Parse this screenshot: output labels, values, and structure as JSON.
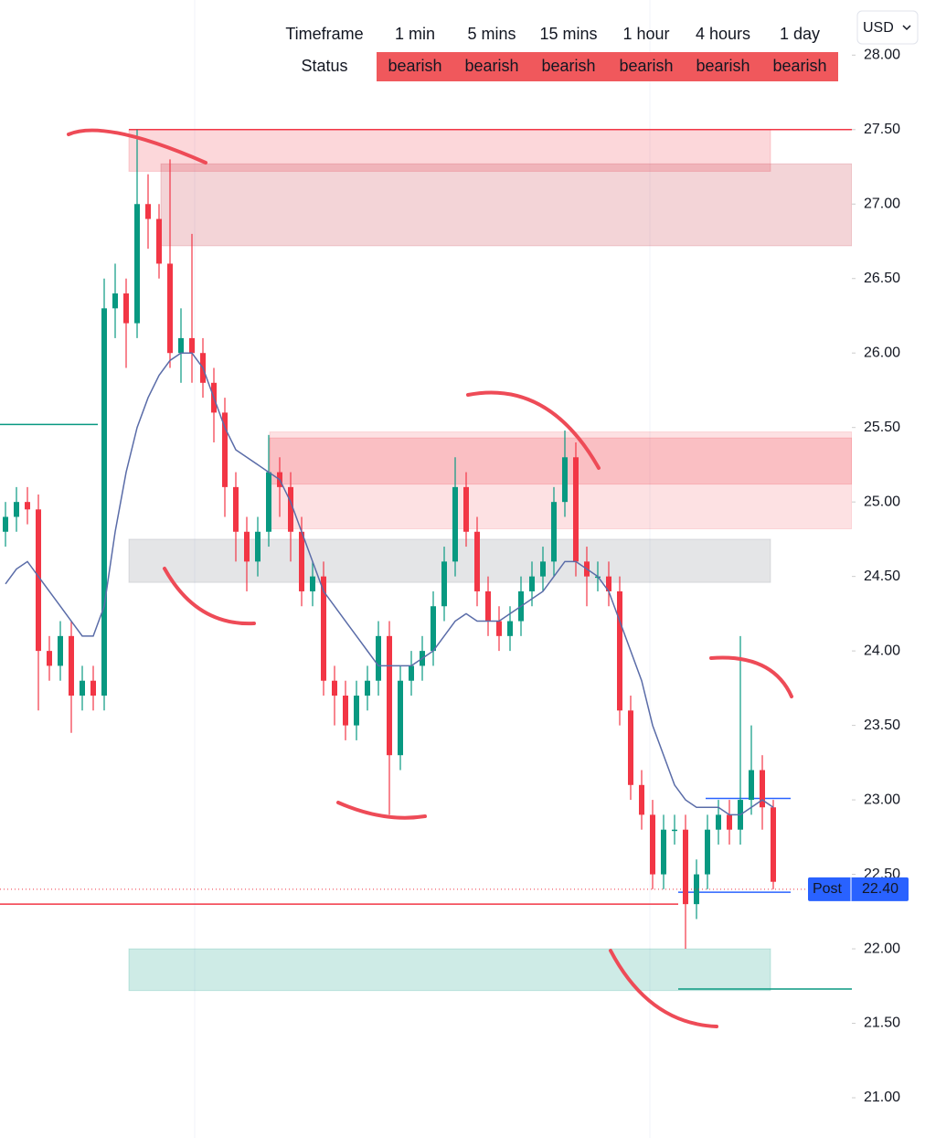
{
  "currency": "USD",
  "status_table": {
    "header": "Timeframe",
    "status_label": "Status",
    "timeframes": [
      "1 min",
      "5 mins",
      "15 mins",
      "1 hour",
      "4 hours",
      "1 day"
    ],
    "statuses": [
      "bearish",
      "bearish",
      "bearish",
      "bearish",
      "bearish",
      "bearish"
    ]
  },
  "chart_data": {
    "type": "candlestick",
    "ylim": [
      20.73,
      28.37
    ],
    "yticks": [
      {
        "value": 21,
        "label": "21.00"
      },
      {
        "value": 21.5,
        "label": "21.50"
      },
      {
        "value": 22,
        "label": "22.00"
      },
      {
        "value": 22.5,
        "label": "22.50"
      },
      {
        "value": 23,
        "label": "23.00"
      },
      {
        "value": 23.5,
        "label": "23.50"
      },
      {
        "value": 24,
        "label": "24.00"
      },
      {
        "value": 24.5,
        "label": "24.50"
      },
      {
        "value": 25,
        "label": "25.00"
      },
      {
        "value": 25.5,
        "label": "25.50"
      },
      {
        "value": 26,
        "label": "26.00"
      },
      {
        "value": 26.5,
        "label": "26.50"
      },
      {
        "value": 27,
        "label": "27.00"
      },
      {
        "value": 27.5,
        "label": "27.50"
      },
      {
        "value": 28,
        "label": "28.00"
      }
    ],
    "up_color": "#089981",
    "down_color": "#f23645",
    "open": [
      24.8,
      24.9,
      25.0,
      24.95,
      24.0,
      23.9,
      24.1,
      23.7,
      23.8,
      23.7,
      26.3,
      26.4,
      26.2,
      27.0,
      26.9,
      26.6,
      26.0,
      26.1,
      26.0,
      25.8,
      25.6,
      25.1,
      24.8,
      24.6,
      24.8,
      25.2,
      25.1,
      24.8,
      24.4,
      24.5,
      23.8,
      23.7,
      23.5,
      23.7,
      23.8,
      24.1,
      23.3,
      23.8,
      23.9,
      24.0,
      24.3,
      24.6,
      25.1,
      24.8,
      24.4,
      24.2,
      24.1,
      24.2,
      24.4,
      24.5,
      24.6,
      25.0,
      25.3,
      24.6,
      24.5,
      24.5,
      24.4,
      23.6,
      23.1,
      22.9,
      22.5,
      22.8,
      22.8,
      22.3,
      22.5,
      22.8,
      22.9,
      22.8,
      23.0,
      23.2,
      22.95
    ],
    "high": [
      25.0,
      25.1,
      25.1,
      25.05,
      24.1,
      24.2,
      24.2,
      23.9,
      23.9,
      26.5,
      26.6,
      26.5,
      27.5,
      27.2,
      27.0,
      27.3,
      26.3,
      26.8,
      26.1,
      25.9,
      25.7,
      25.2,
      24.9,
      24.9,
      25.45,
      25.3,
      25.2,
      24.9,
      24.6,
      24.6,
      23.9,
      23.8,
      23.8,
      23.9,
      24.2,
      24.2,
      23.9,
      24.0,
      24.1,
      24.4,
      24.7,
      25.3,
      25.2,
      24.9,
      24.5,
      24.3,
      24.3,
      24.5,
      24.6,
      24.7,
      25.1,
      25.48,
      25.4,
      24.7,
      24.6,
      24.6,
      24.5,
      23.7,
      23.2,
      23.0,
      22.9,
      22.9,
      22.9,
      22.6,
      22.9,
      23.0,
      23.0,
      24.1,
      23.5,
      23.3,
      23.0
    ],
    "low": [
      24.7,
      24.8,
      24.85,
      23.6,
      23.8,
      23.8,
      23.45,
      23.6,
      23.6,
      23.6,
      26.1,
      25.9,
      26.1,
      26.7,
      26.5,
      25.9,
      25.8,
      25.8,
      25.7,
      25.4,
      24.9,
      24.6,
      24.4,
      24.5,
      24.7,
      24.9,
      24.6,
      24.3,
      24.3,
      23.7,
      23.5,
      23.4,
      23.4,
      23.6,
      23.7,
      22.9,
      23.2,
      23.7,
      23.8,
      23.9,
      24.2,
      24.5,
      24.7,
      24.3,
      24.1,
      24.0,
      24.0,
      24.1,
      24.3,
      24.4,
      24.5,
      24.9,
      24.5,
      24.3,
      24.4,
      24.3,
      23.5,
      23.0,
      22.8,
      22.4,
      22.4,
      22.7,
      22.0,
      22.2,
      22.4,
      22.7,
      22.7,
      22.7,
      22.9,
      22.8,
      22.4
    ],
    "close": [
      24.9,
      25.0,
      24.95,
      24.0,
      23.9,
      24.1,
      23.7,
      23.8,
      23.7,
      26.3,
      26.4,
      26.2,
      27.0,
      26.9,
      26.6,
      26.0,
      26.1,
      26.0,
      25.8,
      25.6,
      25.1,
      24.8,
      24.6,
      24.8,
      25.2,
      25.1,
      24.8,
      24.4,
      24.5,
      23.8,
      23.7,
      23.5,
      23.7,
      23.8,
      24.1,
      23.3,
      23.8,
      23.9,
      24.0,
      24.3,
      24.6,
      25.1,
      24.8,
      24.4,
      24.2,
      24.1,
      24.2,
      24.4,
      24.5,
      24.6,
      25.0,
      25.3,
      24.6,
      24.5,
      24.5,
      24.4,
      23.6,
      23.1,
      22.9,
      22.5,
      22.8,
      22.8,
      22.3,
      22.5,
      22.8,
      22.9,
      22.8,
      23.0,
      23.2,
      22.95,
      22.45
    ],
    "ma": {
      "color": "#5a6ca8",
      "values": [
        24.45,
        24.55,
        24.6,
        24.5,
        24.4,
        24.3,
        24.2,
        24.1,
        24.1,
        24.3,
        24.8,
        25.2,
        25.5,
        25.7,
        25.85,
        25.95,
        26.0,
        26.0,
        25.9,
        25.7,
        25.5,
        25.35,
        25.3,
        25.25,
        25.2,
        25.15,
        25.0,
        24.8,
        24.6,
        24.4,
        24.3,
        24.2,
        24.1,
        24.0,
        23.9,
        23.9,
        23.9,
        23.9,
        23.95,
        24.0,
        24.1,
        24.2,
        24.25,
        24.2,
        24.2,
        24.2,
        24.25,
        24.3,
        24.35,
        24.4,
        24.5,
        24.6,
        24.6,
        24.55,
        24.5,
        24.4,
        24.2,
        24.0,
        23.8,
        23.5,
        23.3,
        23.1,
        23.0,
        22.95,
        22.95,
        22.95,
        22.9,
        22.9,
        22.95,
        23.0,
        22.95
      ]
    },
    "zones": [
      {
        "low": 27.22,
        "high": 27.5,
        "color": "rgba(242,54,69,0.2)"
      },
      {
        "low": 26.72,
        "high": 27.27,
        "color": "rgba(200,60,75,0.22)"
      },
      {
        "low": 24.82,
        "high": 25.47,
        "color": "rgba(242,54,69,0.15)"
      },
      {
        "low": 25.12,
        "high": 25.43,
        "color": "rgba(242,54,69,0.2)"
      },
      {
        "low": 24.46,
        "high": 24.75,
        "color": "rgba(120,123,134,0.2)"
      },
      {
        "low": 21.72,
        "high": 22.0,
        "color": "rgba(8,153,129,0.2)"
      }
    ],
    "levels": [
      {
        "value": 27.5,
        "color": "#f23645"
      },
      {
        "value": 25.52,
        "color": "#089981"
      },
      {
        "value": 22.3,
        "color": "#f23645"
      },
      {
        "value": 21.73,
        "color": "#089981"
      },
      {
        "value": 23.01,
        "color": "#2962ff"
      },
      {
        "value": 22.38,
        "color": "#2962ff"
      }
    ],
    "last_price": {
      "name": "Post",
      "value": 22.4,
      "label": "22.40",
      "color": "#2962ff"
    }
  }
}
